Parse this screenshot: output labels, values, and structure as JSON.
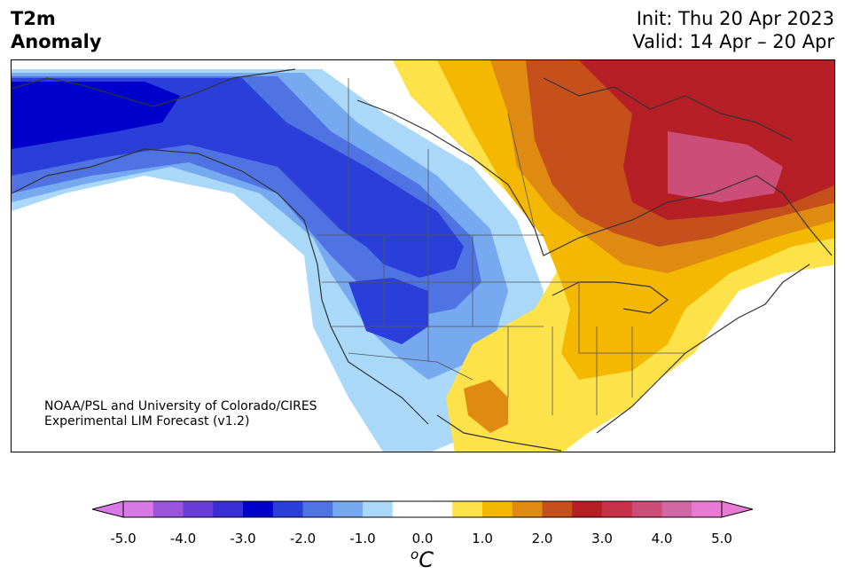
{
  "header": {
    "title_line1": "T2m",
    "title_line2": "Anomaly",
    "init": "Init: Thu 20 Apr 2023",
    "valid": "Valid: 14 Apr – 20 Apr"
  },
  "map": {
    "credit_line1": "NOAA/PSL and University of Colorado/CIRES",
    "credit_line2": "Experimental LIM Forecast (v1.2)"
  },
  "colorbar": {
    "unit": "C",
    "unit_sup": "o",
    "ticks": [
      "-5.0",
      "-4.0",
      "-3.0",
      "-2.0",
      "-1.0",
      "0.0",
      "1.0",
      "2.0",
      "3.0",
      "4.0",
      "5.0"
    ],
    "colors": [
      "#d77ae6",
      "#9b54de",
      "#6a3ddb",
      "#3a2ed6",
      "#0000cc",
      "#2a3fd9",
      "#4f73e3",
      "#76a9ef",
      "#a9d8f9",
      "#ffffff",
      "#ffffff",
      "#fee24a",
      "#f4b800",
      "#df8a10",
      "#c5501b",
      "#b51f25",
      "#c7324a",
      "#cc4e78",
      "#d366a4",
      "#e97ad4"
    ],
    "extend_low": "#d77ae6",
    "extend_high": "#e97ad4"
  }
}
